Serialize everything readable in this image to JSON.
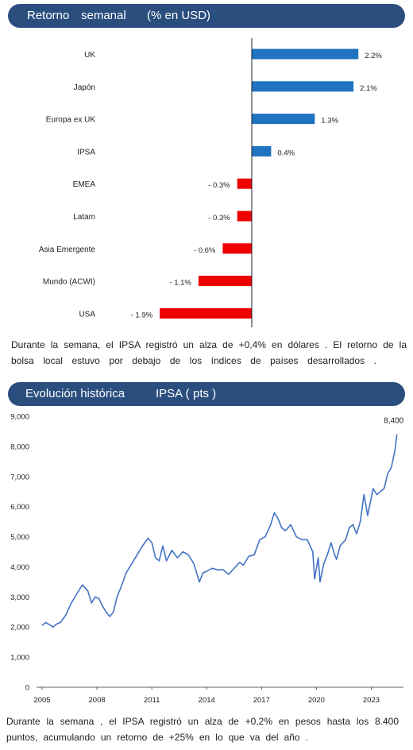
{
  "bar_section": {
    "title_parts": [
      "Retorno",
      "semanal",
      "(% en USD)"
    ],
    "paragraph_lines": [
      "Durante la semana, el IPSA registró un alza de +0,4% en dólares . El retorno de la",
      "bolsa local estuvo por debajo de los índices de países desarrollados ."
    ]
  },
  "line_section": {
    "title_parts": [
      "Evolución histórica",
      "IPSA (",
      "pts )"
    ],
    "paragraph_lines": [
      "Durante la semana , el IPSA registró un alza de +0,2% en pesos hasta los 8.400",
      "puntos, acumulando un retorno de +25% en lo que va del año ."
    ]
  },
  "colors": {
    "banner": "#2a4e7e",
    "positive": "#1f73c1",
    "negative": "#ee0000",
    "line": "#4472c4"
  },
  "chart_data": [
    {
      "type": "bar",
      "orientation": "horizontal",
      "categories": [
        "UK",
        "Japón",
        "Europa ex UK",
        "IPSA",
        "EMEA",
        "Latam",
        "Asia Emergente",
        "Mundo (ACWI)",
        "USA"
      ],
      "values": [
        2.2,
        2.1,
        1.3,
        0.4,
        -0.3,
        -0.3,
        -0.6,
        -1.1,
        -1.9
      ],
      "data_labels": [
        "2.2%",
        "2.1%",
        "1.3%",
        "0.4%",
        "- 0.3%",
        "- 0.3%",
        "- 0.6%",
        "- 1.1%",
        "- 1.9%"
      ],
      "xlim": [
        -2.2,
        2.6
      ],
      "grid": false
    },
    {
      "type": "line",
      "xlim": [
        2005,
        2024.5
      ],
      "ylim": [
        0,
        9000
      ],
      "x_ticks": [
        2005,
        2008,
        2011,
        2014,
        2017,
        2020,
        2023
      ],
      "x_tick_labels": [
        "2005",
        "2008",
        "2011",
        "2014",
        "2017",
        "2020",
        "2023"
      ],
      "y_ticks": [
        0,
        1000,
        2000,
        3000,
        4000,
        5000,
        6000,
        7000,
        8000,
        9000
      ],
      "y_tick_labels": [
        "0",
        "1,000",
        "2,000",
        "3,000",
        "4,000",
        "5,000",
        "6,000",
        "7,000",
        "8,000",
        "9,000"
      ],
      "end_label": "8,400",
      "grid": false,
      "series": [
        {
          "x": [
            2005.0,
            2005.2,
            2005.4,
            2005.6,
            2005.8,
            2006.0,
            2006.3,
            2006.6,
            2006.9,
            2007.2,
            2007.5,
            2007.7,
            2007.9,
            2008.1,
            2008.3,
            2008.5,
            2008.7,
            2008.9,
            2009.1,
            2009.3,
            2009.6,
            2009.9,
            2010.2,
            2010.5,
            2010.8,
            2011.0,
            2011.2,
            2011.4,
            2011.6,
            2011.8,
            2012.1,
            2012.4,
            2012.7,
            2013.0,
            2013.3,
            2013.6,
            2013.8,
            2014.0,
            2014.3,
            2014.6,
            2014.9,
            2015.2,
            2015.5,
            2015.8,
            2016.0,
            2016.3,
            2016.6,
            2016.9,
            2017.2,
            2017.5,
            2017.7,
            2017.9,
            2018.1,
            2018.3,
            2018.6,
            2018.9,
            2019.2,
            2019.5,
            2019.8,
            2019.9,
            2020.1,
            2020.2,
            2020.4,
            2020.6,
            2020.8,
            2021.0,
            2021.1,
            2021.3,
            2021.6,
            2021.8,
            2022.0,
            2022.2,
            2022.4,
            2022.6,
            2022.8,
            2023.0,
            2023.1,
            2023.3,
            2023.5,
            2023.7,
            2023.9,
            2024.1,
            2024.3,
            2024.4
          ],
          "y": [
            2050,
            2150,
            2080,
            2000,
            2100,
            2150,
            2400,
            2800,
            3100,
            3400,
            3200,
            2800,
            3000,
            2950,
            2700,
            2500,
            2350,
            2500,
            3000,
            3300,
            3800,
            4100,
            4400,
            4700,
            4950,
            4800,
            4300,
            4200,
            4700,
            4200,
            4550,
            4300,
            4500,
            4400,
            4100,
            3500,
            3800,
            3850,
            3950,
            3900,
            3900,
            3750,
            3950,
            4150,
            4050,
            4350,
            4400,
            4900,
            5000,
            5400,
            5800,
            5600,
            5300,
            5200,
            5400,
            5000,
            4900,
            4900,
            4500,
            3600,
            4300,
            3500,
            4100,
            4400,
            4800,
            4400,
            4250,
            4700,
            4900,
            5300,
            5400,
            5100,
            5500,
            6400,
            5700,
            6300,
            6600,
            6400,
            6500,
            6600,
            7100,
            7300,
            7900,
            8400
          ]
        }
      ]
    }
  ]
}
